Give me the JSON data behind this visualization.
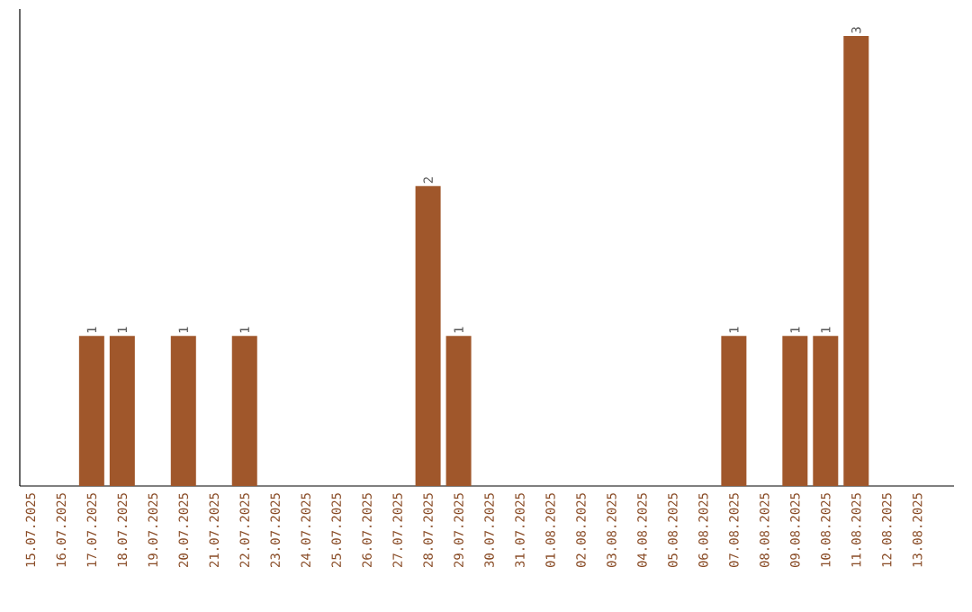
{
  "chart_data": {
    "type": "bar",
    "color": "#a0572b",
    "categories": [
      "15.07.2025",
      "16.07.2025",
      "17.07.2025",
      "18.07.2025",
      "19.07.2025",
      "20.07.2025",
      "21.07.2025",
      "22.07.2025",
      "23.07.2025",
      "24.07.2025",
      "25.07.2025",
      "26.07.2025",
      "27.07.2025",
      "28.07.2025",
      "29.07.2025",
      "30.07.2025",
      "31.07.2025",
      "01.08.2025",
      "02.08.2025",
      "03.08.2025",
      "04.08.2025",
      "05.08.2025",
      "06.08.2025",
      "07.08.2025",
      "08.08.2025",
      "09.08.2025",
      "10.08.2025",
      "11.08.2025",
      "12.08.2025",
      "13.08.2025"
    ],
    "values": [
      0,
      0,
      1,
      1,
      0,
      1,
      0,
      1,
      0,
      0,
      0,
      0,
      0,
      2,
      1,
      0,
      0,
      0,
      0,
      0,
      0,
      0,
      0,
      1,
      0,
      1,
      1,
      3,
      0,
      0
    ],
    "value_labels": [
      null,
      null,
      "1",
      "1",
      null,
      "1",
      null,
      "1",
      null,
      null,
      null,
      null,
      null,
      "2",
      "1",
      null,
      null,
      null,
      null,
      null,
      null,
      null,
      null,
      "1",
      null,
      "1",
      "1",
      "3",
      null,
      null
    ],
    "orientation": "vertical"
  }
}
